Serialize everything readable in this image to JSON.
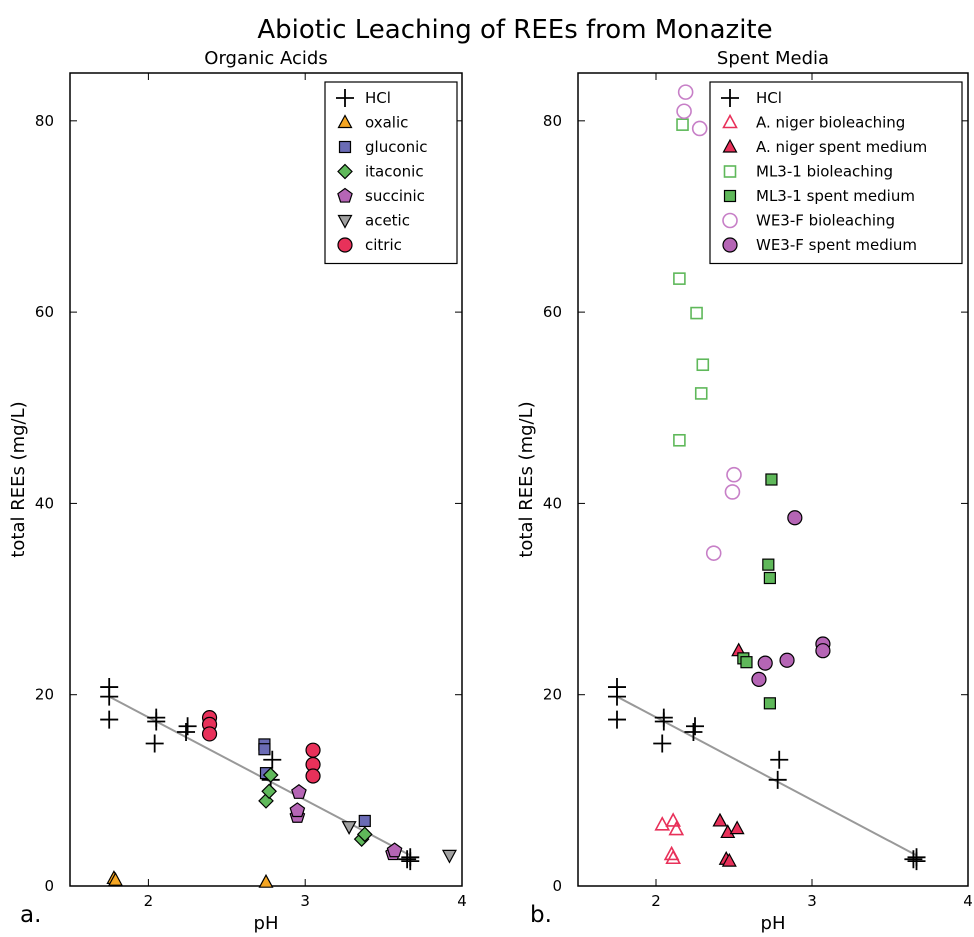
{
  "figure": {
    "title": "Abiotic Leaching of REEs from Monazite",
    "panel_letters": [
      "a.",
      "b."
    ]
  },
  "chart_data": [
    {
      "type": "scatter",
      "title": "Organic Acids",
      "xlabel": "pH",
      "ylabel": "total REEs (mg/L)",
      "xlim": [
        1.5,
        4
      ],
      "ylim": [
        0,
        85
      ],
      "xticks": [
        2,
        3,
        4
      ],
      "yticks": [
        0,
        20,
        40,
        60,
        80
      ],
      "legend_position": "top-right",
      "grid": false,
      "fit_line": {
        "x": [
          1.75,
          3.67
        ],
        "y": [
          19.8,
          3.2
        ],
        "color": "#999999"
      },
      "series": [
        {
          "name": "HCl",
          "marker": "plus",
          "color": "#000000",
          "x": [
            1.75,
            1.75,
            1.75,
            2.04,
            2.05,
            2.05,
            2.24,
            2.25,
            2.78,
            2.79,
            3.65,
            3.67,
            3.67
          ],
          "y": [
            20.8,
            19.8,
            17.4,
            14.9,
            17.2,
            17.6,
            16.1,
            16.7,
            11.1,
            13.2,
            2.8,
            2.6,
            3.0
          ]
        },
        {
          "name": "oxalic",
          "marker": "triangle-up",
          "color": "#f5a623",
          "x": [
            1.78,
            1.79,
            2.75
          ],
          "y": [
            0.8,
            0.6,
            0.4
          ]
        },
        {
          "name": "gluconic",
          "marker": "square",
          "color": "#6a6bb5",
          "x": [
            2.74,
            2.74,
            2.75,
            3.38
          ],
          "y": [
            14.8,
            14.3,
            11.8,
            6.8
          ]
        },
        {
          "name": "itaconic",
          "marker": "diamond",
          "color": "#5fb85a",
          "x": [
            2.75,
            2.77,
            2.78,
            3.36,
            3.38
          ],
          "y": [
            8.9,
            9.9,
            11.6,
            4.9,
            5.4
          ]
        },
        {
          "name": "succinic",
          "marker": "pentagon",
          "color": "#b565b5",
          "x": [
            2.95,
            2.95,
            2.96,
            3.56,
            3.57
          ],
          "y": [
            7.3,
            7.9,
            9.8,
            3.4,
            3.7
          ]
        },
        {
          "name": "acetic",
          "marker": "triangle-down",
          "color": "#a0a0a0",
          "x": [
            3.28,
            3.92
          ],
          "y": [
            6.2,
            3.2
          ]
        },
        {
          "name": "citric",
          "marker": "circle",
          "color": "#e8315a",
          "x": [
            2.39,
            2.39,
            2.39,
            3.05,
            3.05,
            3.05
          ],
          "y": [
            17.6,
            16.9,
            15.9,
            14.2,
            12.7,
            11.5
          ]
        }
      ]
    },
    {
      "type": "scatter",
      "title": "Spent Media",
      "xlabel": "pH",
      "ylabel": "total REEs (mg/L)",
      "xlim": [
        1.5,
        4
      ],
      "ylim": [
        0,
        85
      ],
      "xticks": [
        2,
        3,
        4
      ],
      "yticks": [
        0,
        20,
        40,
        60,
        80
      ],
      "legend_position": "top-right",
      "grid": false,
      "fit_line": {
        "x": [
          1.75,
          3.67
        ],
        "y": [
          19.8,
          3.2
        ],
        "color": "#999999"
      },
      "series": [
        {
          "name": "HCl",
          "marker": "plus",
          "color": "#000000",
          "x": [
            1.75,
            1.75,
            1.75,
            2.04,
            2.05,
            2.05,
            2.24,
            2.25,
            2.78,
            2.79,
            3.65,
            3.67,
            3.67
          ],
          "y": [
            20.8,
            19.8,
            17.4,
            14.9,
            17.2,
            17.6,
            16.1,
            16.7,
            11.1,
            13.2,
            2.8,
            2.6,
            3.0
          ]
        },
        {
          "name": "A. niger bioleaching",
          "marker": "triangle-up-open",
          "color": "#e8315a",
          "x": [
            2.04,
            2.11,
            2.13,
            2.1,
            2.11
          ],
          "y": [
            6.4,
            6.8,
            5.9,
            3.3,
            2.9
          ]
        },
        {
          "name": "A. niger spent medium",
          "marker": "triangle-up",
          "color": "#e8315a",
          "x": [
            2.41,
            2.46,
            2.52,
            2.53,
            2.45,
            2.47
          ],
          "y": [
            6.8,
            5.6,
            6.0,
            24.6,
            2.8,
            2.6
          ]
        },
        {
          "name": "ML3-1 bioleaching",
          "marker": "square-open",
          "color": "#5fb85a",
          "x": [
            2.17,
            2.15,
            2.26,
            2.3,
            2.29,
            2.15
          ],
          "y": [
            79.6,
            63.5,
            59.9,
            54.5,
            51.5,
            46.6
          ]
        },
        {
          "name": "ML3-1 spent medium",
          "marker": "square",
          "color": "#5fb85a",
          "x": [
            2.74,
            2.72,
            2.73,
            2.56,
            2.58,
            2.73
          ],
          "y": [
            42.5,
            33.6,
            32.2,
            23.8,
            23.4,
            19.1
          ]
        },
        {
          "name": "WE3-F bioleaching",
          "marker": "circle-open",
          "color": "#c77fc7",
          "x": [
            2.19,
            2.18,
            2.28,
            2.5,
            2.49,
            2.37
          ],
          "y": [
            83.0,
            81.0,
            79.2,
            43.0,
            41.2,
            34.8
          ]
        },
        {
          "name": "WE3-F spent medium",
          "marker": "circle",
          "color": "#b565b5",
          "x": [
            2.89,
            3.07,
            3.07,
            2.7,
            2.84,
            2.66
          ],
          "y": [
            38.5,
            25.3,
            24.6,
            23.3,
            23.6,
            21.6
          ]
        }
      ]
    }
  ]
}
